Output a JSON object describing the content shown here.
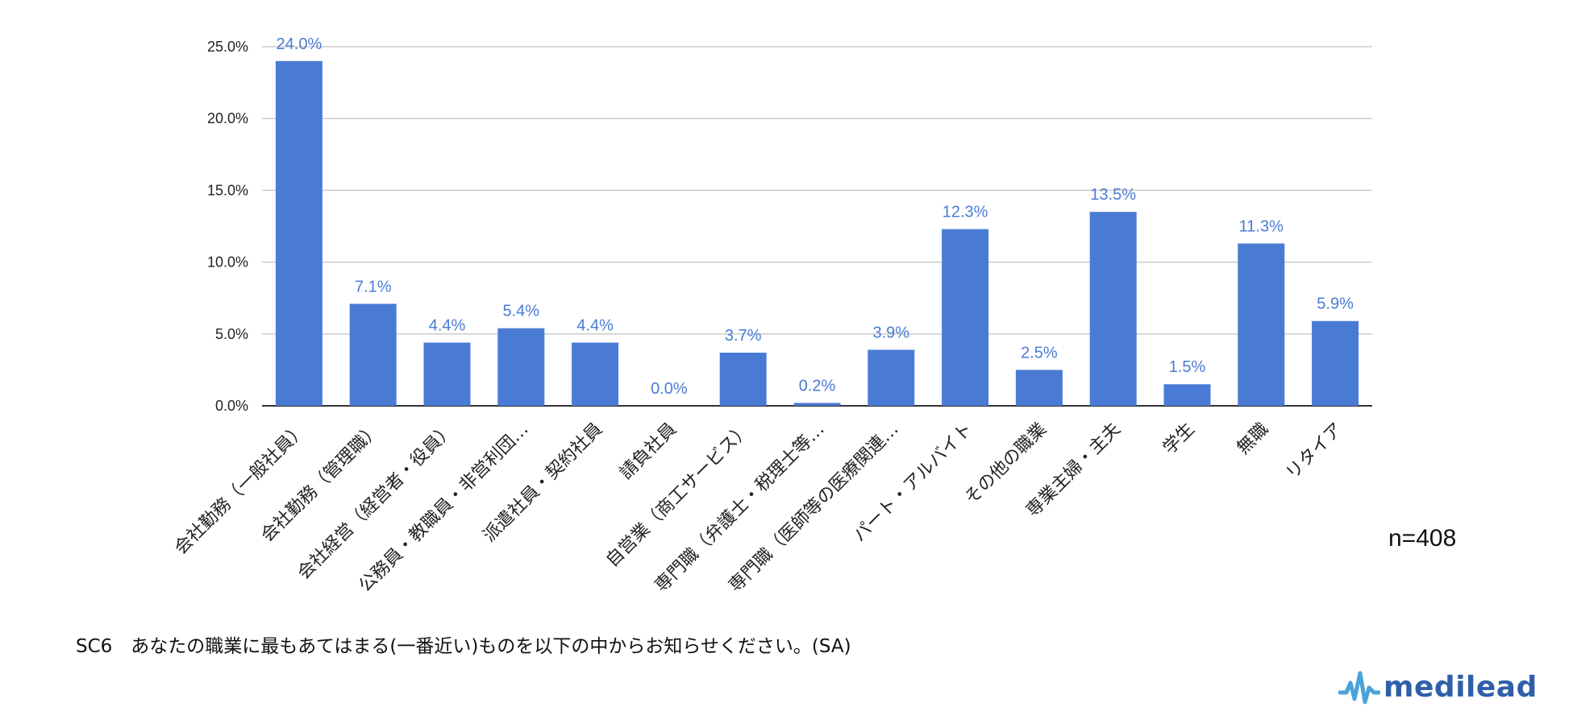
{
  "chart_data": {
    "type": "bar",
    "categories": [
      "会社勤務（一般社員）",
      "会社勤務（管理職）",
      "会社経営（経営者・役員）",
      "公務員・教職員・非営利団…",
      "派遣社員・契約社員",
      "請負社員",
      "自営業（商工サービス）",
      "専門職（弁護士・税理士等…",
      "専門職（医師等の医療関連…",
      "パート・アルバイト",
      "その他の職業",
      "専業主婦・主夫",
      "学生",
      "無職",
      "リタイア"
    ],
    "values": [
      24.0,
      7.1,
      4.4,
      5.4,
      4.4,
      0.0,
      3.7,
      0.2,
      3.9,
      12.3,
      2.5,
      13.5,
      1.5,
      11.3,
      5.9
    ],
    "data_labels": [
      "24.0%",
      "7.1%",
      "4.4%",
      "5.4%",
      "4.4%",
      "0.0%",
      "3.7%",
      "0.2%",
      "3.9%",
      "12.3%",
      "2.5%",
      "13.5%",
      "1.5%",
      "11.3%",
      "5.9%"
    ],
    "yticks": [
      "0.0%",
      "5.0%",
      "10.0%",
      "15.0%",
      "20.0%",
      "25.0%"
    ],
    "ylim": [
      0,
      25
    ],
    "grid": true,
    "legend": "none",
    "bar_color": "#4a7bd4"
  },
  "sample_size": "n=408",
  "question_text": "SC6　あなたの職業に最もあてはまる(一番近い)ものを以下の中からお知らせください。(SA)",
  "logo_text": "medilead",
  "logo_icon": "pulse-line-icon"
}
